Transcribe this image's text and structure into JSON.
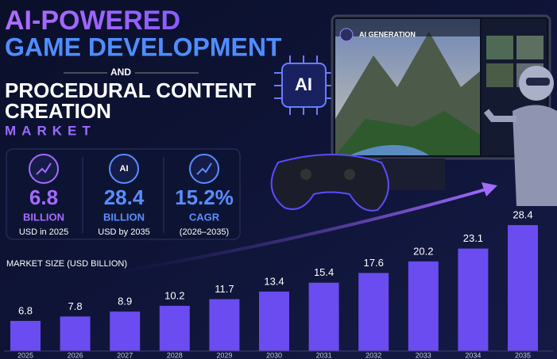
{
  "title_lines": [
    "AI-POWERED",
    "GAME DEVELOPMENT",
    "AND",
    "PROCEDURAL CONTENT",
    "CREATION",
    "MARKET"
  ],
  "stats": [
    {
      "icon": null,
      "value": "6.8",
      "unit": "BILLION",
      "note": "USD in 2025"
    },
    {
      "icon": "AI",
      "value": "28.4",
      "unit": "BILLION",
      "note": "USD by 2035"
    },
    {
      "icon": null,
      "value": "15.2%",
      "unit": "CAGR",
      "note": "(2026–2035)"
    }
  ],
  "illustration": {
    "chip": "AI",
    "screen_title": "AI GENERATION"
  },
  "chart_data": {
    "type": "bar",
    "title": "MARKET SIZE (USD BILLION)",
    "categories": [
      "2025",
      "2026",
      "2027",
      "2028",
      "2029",
      "2030",
      "2031",
      "2032",
      "2033",
      "2034",
      "2035"
    ],
    "values": [
      6.8,
      7.8,
      8.9,
      10.2,
      11.7,
      13.4,
      15.4,
      17.6,
      20.2,
      23.1,
      28.4
    ],
    "color": "#6a4cf0"
  }
}
